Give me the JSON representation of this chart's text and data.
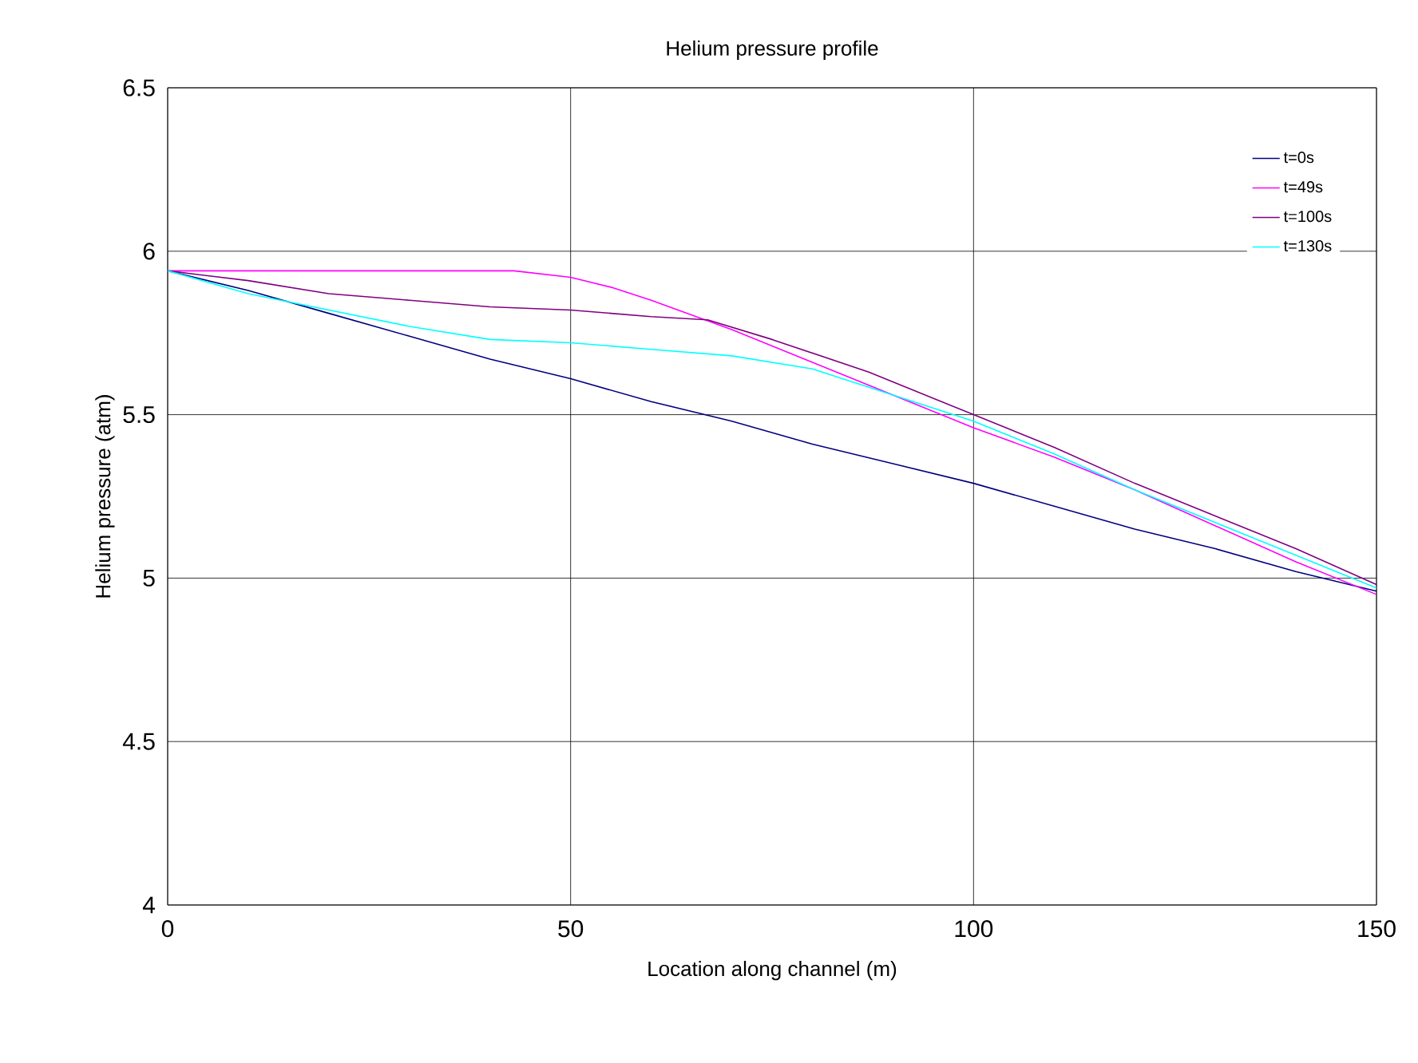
{
  "chart_data": {
    "type": "line",
    "title": "Helium pressure profile",
    "xlabel": "Location along channel (m)",
    "ylabel": "Helium pressure (atm)",
    "xlim": [
      0,
      150
    ],
    "ylim": [
      4,
      6.5
    ],
    "xticks": [
      0,
      50,
      100,
      150
    ],
    "yticks": [
      4,
      4.5,
      5,
      5.5,
      6,
      6.5
    ],
    "grid": true,
    "legend": "top right",
    "line_style": "solid",
    "marker": "none",
    "series": [
      {
        "name": "t=0s",
        "color": "#000080",
        "x": [
          0,
          10,
          20,
          30,
          40,
          50,
          60,
          70,
          80,
          90,
          100,
          110,
          120,
          130,
          140,
          150
        ],
        "values": [
          5.94,
          5.88,
          5.81,
          5.74,
          5.67,
          5.61,
          5.54,
          5.48,
          5.41,
          5.35,
          5.29,
          5.22,
          5.15,
          5.09,
          5.02,
          4.96
        ]
      },
      {
        "name": "t=49s",
        "color": "#ff00ff",
        "x": [
          0,
          43,
          50,
          55,
          60,
          70,
          80,
          90,
          100,
          110,
          120,
          130,
          140,
          150
        ],
        "values": [
          5.94,
          5.94,
          5.92,
          5.89,
          5.85,
          5.76,
          5.66,
          5.56,
          5.46,
          5.37,
          5.27,
          5.16,
          5.05,
          4.95
        ]
      },
      {
        "name": "t=100s",
        "color": "#800080",
        "x": [
          0,
          10,
          20,
          30,
          40,
          50,
          60,
          67,
          75,
          87,
          100,
          110,
          120,
          130,
          140,
          150
        ],
        "values": [
          5.94,
          5.91,
          5.87,
          5.85,
          5.83,
          5.82,
          5.8,
          5.79,
          5.73,
          5.63,
          5.5,
          5.4,
          5.29,
          5.19,
          5.09,
          4.98
        ]
      },
      {
        "name": "t=130s",
        "color": "#00ffff",
        "x": [
          0,
          10,
          20,
          30,
          40,
          50,
          60,
          70,
          80,
          90,
          100,
          110,
          120,
          130,
          140,
          150
        ],
        "values": [
          5.94,
          5.87,
          5.82,
          5.77,
          5.73,
          5.72,
          5.7,
          5.68,
          5.64,
          5.56,
          5.48,
          5.38,
          5.27,
          5.17,
          5.07,
          4.97
        ]
      }
    ]
  }
}
